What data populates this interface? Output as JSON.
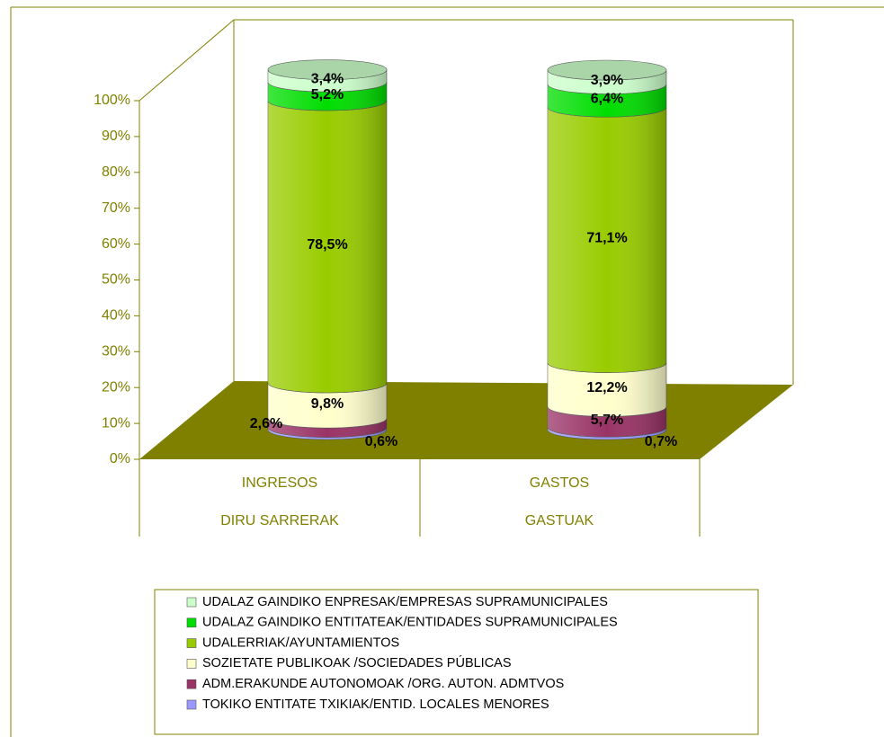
{
  "chart_data": {
    "type": "cylinder_stacked_100",
    "categories": [
      "INGRESOS",
      "GASTOS"
    ],
    "categories_secondary": [
      "DIRU SARRERAK",
      "GASTUAK"
    ],
    "ylim": [
      0,
      100
    ],
    "yticks": [
      {
        "value": 0,
        "label": "0%"
      },
      {
        "value": 10,
        "label": "10%"
      },
      {
        "value": 20,
        "label": "20%"
      },
      {
        "value": 30,
        "label": "30%"
      },
      {
        "value": 40,
        "label": "40%"
      },
      {
        "value": 50,
        "label": "50%"
      },
      {
        "value": 60,
        "label": "60%"
      },
      {
        "value": 70,
        "label": "70%"
      },
      {
        "value": 80,
        "label": "80%"
      },
      {
        "value": 90,
        "label": "90%"
      },
      {
        "value": 100,
        "label": "100%"
      }
    ],
    "series": [
      {
        "name": "TOKIKO ENTITATE TXIKIAK/ENTID. LOCALES MENORES",
        "color": "#9999ff",
        "values": [
          0.6,
          0.7
        ],
        "value_labels": [
          "0,6%",
          "0,7%"
        ]
      },
      {
        "name": "ADM.ERAKUNDE AUTONOMOAK /ORG. AUTON. ADMTVOS",
        "color": "#993366",
        "values": [
          2.6,
          5.7
        ],
        "value_labels": [
          "2,6%",
          "5,7%"
        ]
      },
      {
        "name": "SOZIETATE PUBLIKOAK /SOCIEDADES PÚBLICAS",
        "color": "#ffffcc",
        "values": [
          9.8,
          12.2
        ],
        "value_labels": [
          "9,8%",
          "12,2%"
        ]
      },
      {
        "name": "UDALERRIAK/AYUNTAMIENTOS",
        "color": "#99cc00",
        "values": [
          78.5,
          71.1
        ],
        "value_labels": [
          "78,5%",
          "71,1%"
        ]
      },
      {
        "name": "UDALAZ GAINDIKO ENTITATEAK/ENTIDADES SUPRAMUNICIPALES",
        "color": "#00dd00",
        "values": [
          5.2,
          6.4
        ],
        "value_labels": [
          "5,2%",
          "6,4%"
        ]
      },
      {
        "name": "UDALAZ GAINDIKO ENPRESAK/EMPRESAS SUPRAMUNICIPALES",
        "color": "#ccffcc",
        "values": [
          3.4,
          3.9
        ],
        "value_labels": [
          "3,4%",
          "3,9%"
        ]
      }
    ]
  }
}
